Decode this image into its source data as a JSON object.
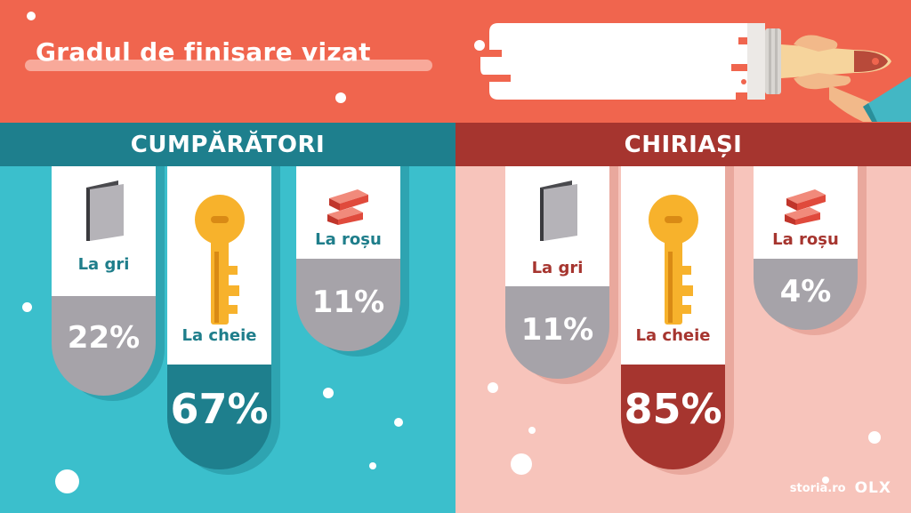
{
  "title": "Gradul de finisare vizat",
  "colors": {
    "header_bg": "#f0654e",
    "buyers_panel": "#3bbfcc",
    "buyers_header": "#1e7f8d",
    "buyers_accent": "#1f7e8b",
    "renters_panel": "#f7c4bb",
    "renters_header": "#a6352f",
    "gray_pill": "#a6a3a9",
    "gray_shadow_left": "#2ea4b1",
    "gray_shadow_right": "#e9a89d",
    "key_color": "#f7b22c"
  },
  "chart_data": [
    {
      "type": "bar",
      "title": "CUMPĂRĂTORI",
      "categories": [
        "La gri",
        "La cheie",
        "La roșu"
      ],
      "values": [
        22,
        67,
        11
      ],
      "value_labels": [
        "22%",
        "67%",
        "11%"
      ],
      "icons": [
        "gray-panel-icon",
        "key-icon",
        "brick-icon"
      ],
      "unit": "%"
    },
    {
      "type": "bar",
      "title": "CHIRIAȘI",
      "categories": [
        "La gri",
        "La cheie",
        "La roșu"
      ],
      "values": [
        11,
        85,
        4
      ],
      "value_labels": [
        "11%",
        "85%",
        "4%"
      ],
      "icons": [
        "gray-panel-icon",
        "key-icon",
        "brick-icon"
      ],
      "unit": "%"
    }
  ],
  "footer": {
    "storia": "storia.ro",
    "olx": "OLX"
  }
}
